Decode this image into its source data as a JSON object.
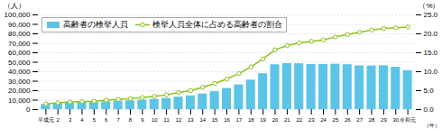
{
  "chart_data": {
    "type": "bar",
    "categories": [
      "平成元",
      "2",
      "3",
      "4",
      "5",
      "6",
      "7",
      "8",
      "9",
      "10",
      "11",
      "12",
      "13",
      "14",
      "15",
      "16",
      "17",
      "18",
      "19",
      "20",
      "21",
      "22",
      "23",
      "24",
      "25",
      "26",
      "27",
      "28",
      "29",
      "30",
      "令和元"
    ],
    "series": [
      {
        "name": "高齢者の検挙人員",
        "type": "bar",
        "color": "#5bc4e8",
        "values": [
          5359,
          6584,
          7197,
          7482,
          7584,
          8277,
          8940,
          9370,
          10036,
          10855,
          11857,
          13174,
          14547,
          16501,
          18938,
          22313,
          26079,
          31136,
          37892,
          47365,
          48573,
          48425,
          47642,
          47606,
          47963,
          47437,
          46167,
          46091,
          46247,
          44706,
          41174
        ]
      },
      {
        "name": "検挙人員全体に占める高齢者の割合",
        "type": "line",
        "axis": "y2",
        "color": "#8dc21f",
        "marker": "circle",
        "values": [
          1.5,
          1.8,
          2.0,
          2.1,
          2.2,
          2.5,
          2.7,
          2.9,
          3.2,
          3.5,
          3.9,
          4.5,
          5.0,
          5.9,
          6.9,
          8.1,
          9.5,
          11.3,
          13.4,
          15.8,
          16.9,
          17.6,
          18.0,
          18.4,
          19.2,
          19.8,
          20.4,
          21.0,
          21.4,
          21.6,
          21.8
        ]
      }
    ],
    "xlabel": "（年）",
    "ylabel": "（人）",
    "y2label": "（%）",
    "ylim": [
      0,
      100000
    ],
    "yticks": [
      0,
      {
        "value": 10000,
        "label": "10,000"
      },
      {
        "value": 20000,
        "label": "20,000"
      },
      {
        "value": 30000,
        "label": "30,000"
      },
      {
        "value": 40000,
        "label": "40,000"
      },
      {
        "value": 50000,
        "label": "50,000"
      },
      {
        "value": 60000,
        "label": "60,000"
      },
      {
        "value": 70000,
        "label": "70,000"
      },
      {
        "value": 80000,
        "label": "80,000"
      },
      {
        "value": 90000,
        "label": "90,000"
      },
      {
        "value": 100000,
        "label": "100,000"
      }
    ],
    "y2lim": [
      0,
      25.0
    ],
    "y2ticks": [
      {
        "value": 0,
        "label": "0.0"
      },
      {
        "value": 5,
        "label": "5.0"
      },
      {
        "value": 10,
        "label": "10.0"
      },
      {
        "value": 15,
        "label": "15.0"
      },
      {
        "value": 20,
        "label": "20.0"
      },
      {
        "value": 25,
        "label": "25.0"
      }
    ],
    "grid": true,
    "legend": "upper left"
  }
}
